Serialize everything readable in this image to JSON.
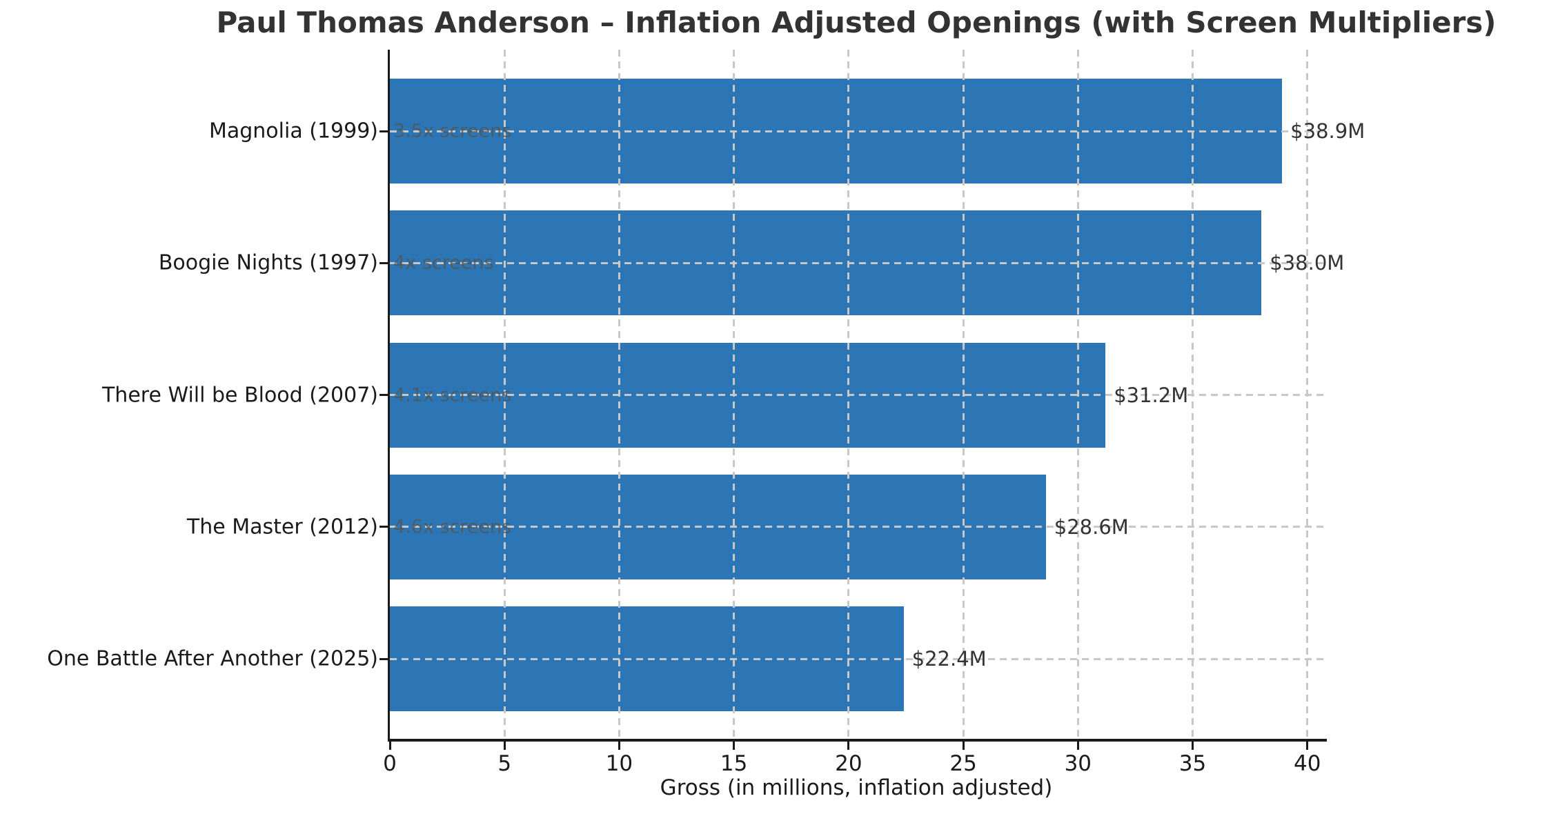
{
  "chart_data": {
    "type": "bar",
    "orientation": "horizontal",
    "title": "Paul Thomas Anderson – Inflation Adjusted Openings (with Screen Multipliers)",
    "xlabel": "Gross (in millions, inflation adjusted)",
    "ylabel": "",
    "categories": [
      "Magnolia (1999)",
      "Boogie Nights (1997)",
      "There Will be Blood (2007)",
      "The Master (2012)",
      "One Battle After Another (2025)"
    ],
    "values": [
      38.9,
      38.0,
      31.2,
      28.6,
      22.4
    ],
    "value_labels": [
      "$38.9M",
      "$38.0M",
      "$31.2M",
      "$28.6M",
      "$22.4M"
    ],
    "screen_multipliers": [
      "3.5x screens",
      "4x screens",
      "4.1x screens",
      "4.6x screens",
      ""
    ],
    "xticks": [
      0,
      5,
      10,
      15,
      20,
      25,
      30,
      35,
      40
    ],
    "xlim": [
      0,
      40.85
    ],
    "grid": {
      "shown": true,
      "style": "dashed",
      "color": "#c8c8c8",
      "on_top_of_bars": true
    },
    "legend": {
      "shown": false
    },
    "colors": {
      "bar": "#2d76b6",
      "title": "#333333",
      "tick_text": "#1a1a1a",
      "value_label": "#333333",
      "screens_label": "#55554f",
      "axis_spine": "#1a1a1a"
    }
  }
}
